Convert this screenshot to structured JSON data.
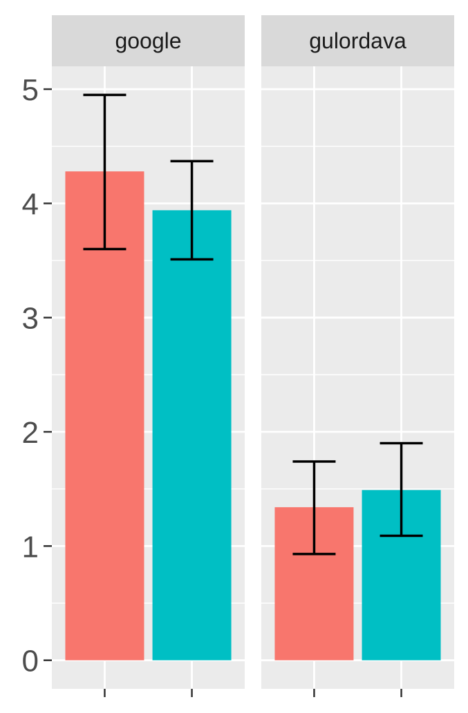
{
  "chart_data": {
    "type": "bar",
    "facets": [
      "google",
      "gulordava"
    ],
    "x_tick_labels": [
      "",
      ""
    ],
    "series_colors": [
      "#F8766D",
      "#00BFC4"
    ],
    "panels": [
      {
        "name": "google",
        "bars": [
          {
            "value": 4.28,
            "err_low": 3.6,
            "err_high": 4.95
          },
          {
            "value": 3.94,
            "err_low": 3.51,
            "err_high": 4.37
          }
        ]
      },
      {
        "name": "gulordava",
        "bars": [
          {
            "value": 1.34,
            "err_low": 0.93,
            "err_high": 1.74
          },
          {
            "value": 1.49,
            "err_low": 1.09,
            "err_high": 1.9
          }
        ]
      }
    ],
    "y_ticks": [
      0,
      1,
      2,
      3,
      4,
      5
    ],
    "ylim": [
      -0.25,
      5.2
    ],
    "title": "",
    "xlabel": "",
    "ylabel": "",
    "grid": true,
    "legend": "none"
  }
}
